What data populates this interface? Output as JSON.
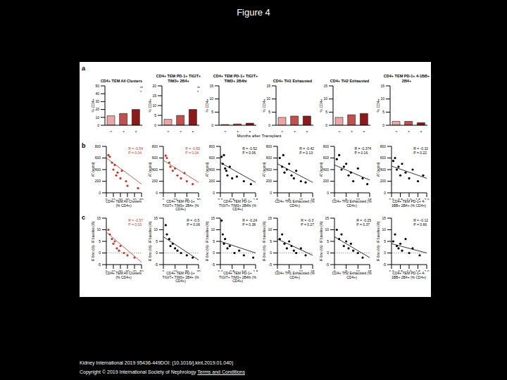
{
  "title": "Figure 4",
  "panel_labels": [
    "a",
    "b",
    "c"
  ],
  "shared_x_label": "Months after Transplant",
  "footer": [
    "Kidney International 2019 95436-449DOI: (10.1016/j.kint.2019.01.040)",
    "Copyright © 2019 International Society of Nephrology",
    "Terms and Conditions"
  ],
  "chart_data": [
    {
      "type": "bar",
      "title": "CD4+ TEM All Clusters",
      "categories": [
        "0",
        "3",
        "6"
      ],
      "values": [
        12,
        15,
        20
      ],
      "colors": [
        "#e8a6a6",
        "#c0504d",
        "#8b1a1a"
      ],
      "y_label": "% CD4+",
      "ylim": [
        0,
        50
      ],
      "yticks": [
        0,
        10,
        20,
        30,
        40,
        50
      ],
      "annotations": [
        "**",
        "*"
      ],
      "annotation_color": "#000000"
    },
    {
      "type": "bar",
      "title": "CD4+ TEM PD-1+ TIGIT+ TIM3+ 2B4+",
      "categories": [
        "0",
        "3",
        "6"
      ],
      "values": [
        3,
        5,
        8
      ],
      "colors": [
        "#e8a6a6",
        "#c0504d",
        "#8b1a1a"
      ],
      "y_label": "% CD4+",
      "ylim": [
        0,
        20
      ],
      "yticks": [
        0,
        5,
        10,
        15,
        20
      ],
      "annotations": [
        "**",
        "*"
      ],
      "annotation_color": "#000000"
    },
    {
      "type": "bar",
      "title": "CD4+ TEM PD-1+ TIGIT+ TIM3+ 2B4hi",
      "categories": [
        "0",
        "3",
        "6"
      ],
      "values": [
        0.3,
        0.5,
        0.8
      ],
      "colors": [
        "#e8a6a6",
        "#c0504d",
        "#8b1a1a"
      ],
      "y_label": "% CD4+",
      "ylim": [
        0,
        15
      ],
      "yticks": [
        0,
        5,
        10,
        15
      ]
    },
    {
      "type": "bar",
      "title": "CD4+ TH1 Exhausted",
      "categories": [
        "0",
        "3",
        "6"
      ],
      "values": [
        3,
        3.5,
        3.5
      ],
      "colors": [
        "#e8a6a6",
        "#c0504d",
        "#8b1a1a"
      ],
      "y_label": "% CD4+",
      "ylim": [
        0,
        15
      ],
      "yticks": [
        0,
        5,
        10,
        15
      ]
    },
    {
      "type": "bar",
      "title": "CD4+ TH2 Exhausted",
      "categories": [
        "0",
        "3",
        "6"
      ],
      "values": [
        3,
        4,
        4.5
      ],
      "colors": [
        "#e8a6a6",
        "#c0504d",
        "#8b1a1a"
      ],
      "y_label": "% CD4+",
      "ylim": [
        0,
        15
      ],
      "yticks": [
        0,
        5,
        10,
        15
      ]
    },
    {
      "type": "bar",
      "title": "CD4+ TEM PD-1+ 4-1BB+ 2B4+",
      "categories": [
        "0",
        "3",
        "6"
      ],
      "values": [
        1.5,
        1.5,
        1
      ],
      "colors": [
        "#e8a6a6",
        "#c0504d",
        "#8b1a1a"
      ],
      "y_label": "% CD4+",
      "ylim": [
        0,
        15
      ],
      "yticks": [
        0,
        5,
        10,
        15
      ]
    },
    {
      "type": "scatter",
      "x_label": "CD4+ TEM All Clusters (% CD4+)",
      "y_label": "AT (ng/ml)",
      "x": [
        3,
        5,
        8,
        10,
        12,
        14,
        16,
        20,
        22,
        28,
        30,
        45
      ],
      "values": [
        650,
        620,
        520,
        400,
        480,
        300,
        350,
        250,
        380,
        200,
        120,
        80
      ],
      "color": "#c0392b",
      "xlim": [
        0,
        50
      ],
      "xticks": [
        0,
        10,
        20,
        30,
        40,
        50
      ],
      "ylim": [
        0,
        800
      ],
      "yticks": [
        0,
        200,
        400,
        600,
        800
      ],
      "annotations": [
        "R = -0.54",
        "P = 0.04"
      ],
      "annotation_color": "#c0392b",
      "trend_line": [
        [
          0,
          600
        ],
        [
          50,
          150
        ]
      ]
    },
    {
      "type": "scatter",
      "x_label": "CD4+ TEM PD-1+ TIGIT+ TIM3+ 2B4+ (% CD4+)",
      "y_label": "AT (ng/ml)",
      "x": [
        2,
        3,
        5,
        6,
        8,
        10,
        12,
        15,
        18,
        20,
        25
      ],
      "values": [
        640,
        600,
        520,
        450,
        380,
        420,
        300,
        250,
        340,
        200,
        150
      ],
      "color": "#c0392b",
      "xlim": [
        0,
        30
      ],
      "xticks": [
        0,
        10,
        20,
        30
      ],
      "ylim": [
        0,
        800
      ],
      "yticks": [
        0,
        200,
        400,
        600,
        800
      ],
      "annotations": [
        "R = -0.55",
        "P = 0.04"
      ],
      "annotation_color": "#c0392b",
      "trend_line": [
        [
          0,
          560
        ],
        [
          30,
          180
        ]
      ]
    },
    {
      "type": "scatter",
      "x_label": "CD4+ TEM PD-1+ TIGIT+ TIM3+ 2B4hi (% CD4+)",
      "y_label": "AT (ng/ml)",
      "x": [
        0.05,
        0.1,
        0.15,
        0.2,
        0.25,
        0.3,
        0.4,
        0.5,
        0.7,
        1.0,
        1.3
      ],
      "values": [
        620,
        500,
        650,
        420,
        380,
        300,
        450,
        250,
        280,
        200,
        150
      ],
      "color": "#000000",
      "xlim": [
        0,
        1.5
      ],
      "xticks": [
        {
          "value": 0,
          "label": "0.0"
        },
        0.5,
        {
          "value": 1,
          "label": "1.0"
        },
        1.5
      ],
      "ylim": [
        0,
        800
      ],
      "yticks": [
        0,
        200,
        400,
        600,
        800
      ],
      "annotations": [
        "R = -0.52",
        "P = 0.06"
      ],
      "annotation_color": "#000000",
      "trend_line": [
        [
          0,
          520
        ],
        [
          1.5,
          180
        ]
      ]
    },
    {
      "type": "scatter",
      "x_label": "CD4+ TH1 Exhausted (% CD4+)",
      "y_label": "AT (ng/ml)",
      "x": [
        1,
        2,
        2.5,
        3,
        4,
        5,
        6,
        7,
        8,
        10,
        12
      ],
      "values": [
        600,
        450,
        650,
        350,
        400,
        500,
        300,
        250,
        380,
        200,
        180
      ],
      "color": "#000000",
      "xlim": [
        0,
        15
      ],
      "xticks": [
        0,
        5,
        10,
        15
      ],
      "ylim": [
        0,
        800
      ],
      "yticks": [
        0,
        200,
        400,
        600,
        800
      ],
      "annotations": [
        "R = -0.42",
        "P = 0.13"
      ],
      "annotation_color": "#000000",
      "trend_line": [
        [
          0,
          500
        ],
        [
          15,
          180
        ]
      ]
    },
    {
      "type": "scatter",
      "x_label": "CD4+ TH2 Exhausted (% CD4+)",
      "y_label": "AT (ng/ml)",
      "x": [
        1,
        2,
        3,
        4,
        5,
        6,
        7,
        8,
        10,
        12,
        14
      ],
      "values": [
        580,
        650,
        400,
        450,
        500,
        300,
        350,
        200,
        420,
        250,
        150
      ],
      "color": "#000000",
      "xlim": [
        0,
        15
      ],
      "xticks": [
        0,
        5,
        10,
        15
      ],
      "ylim": [
        0,
        800
      ],
      "yticks": [
        0,
        200,
        400,
        600,
        800
      ],
      "annotations": [
        "R = -0.374",
        "P = 0.16"
      ],
      "annotation_color": "#000000",
      "trend_line": [
        [
          0,
          480
        ],
        [
          15,
          220
        ]
      ]
    },
    {
      "type": "scatter",
      "x_label": "CD4+ TEM PD-1+ 4-1BB+ 2B4+ (% CD4+)",
      "y_label": "AT (ng/ml)",
      "x": [
        0.1,
        0.2,
        0.3,
        0.4,
        0.5,
        0.6,
        0.8,
        1.0,
        1.2,
        1.5,
        1.8
      ],
      "values": [
        550,
        600,
        400,
        450,
        300,
        500,
        350,
        250,
        400,
        200,
        300
      ],
      "color": "#000000",
      "xlim": [
        0,
        2
      ],
      "xticks": [
        {
          "value": 0,
          "label": "0.0"
        },
        0.5,
        {
          "value": 1,
          "label": "1.0"
        },
        1.5,
        {
          "value": 2,
          "label": "2.0"
        }
      ],
      "ylim": [
        0,
        800
      ],
      "yticks": [
        0,
        200,
        400,
        600,
        800
      ],
      "annotations": [
        "R = -0.32",
        "P = 0.22"
      ],
      "annotation_color": "#000000",
      "trend_line": [
        [
          0,
          460
        ],
        [
          2,
          250
        ]
      ]
    },
    {
      "type": "scatter",
      "x_label": "CD4+ TEM All Clusters (% CD4+)",
      "y_label": "IF 6mo (%) - IF baseline (%)",
      "x": [
        3,
        5,
        8,
        10,
        12,
        15,
        18,
        20,
        25,
        30,
        40
      ],
      "values": [
        10,
        8,
        6,
        4,
        5,
        2,
        1,
        3,
        0,
        -1,
        -2
      ],
      "color": "#c0392b",
      "xlim": [
        0,
        50
      ],
      "xticks": [
        0,
        10,
        20,
        30,
        40,
        50
      ],
      "ylim": [
        -5,
        15
      ],
      "yticks": [
        -5,
        0,
        5,
        10,
        15
      ],
      "annotations": [
        "R = -0.57",
        "P = 0.03"
      ],
      "annotation_color": "#c0392b",
      "trend_line": [
        [
          0,
          9
        ],
        [
          50,
          -4
        ]
      ],
      "reference_line": 0
    },
    {
      "type": "scatter",
      "x_label": "CD4+ TEM PD-1+ TIGIT+ TIM3+ 2B4+ (% CD4+)",
      "y_label": "IF 6mo (%) - IF baseline (%)",
      "x": [
        2,
        3,
        5,
        6,
        8,
        10,
        12,
        15,
        20,
        25
      ],
      "values": [
        12,
        8,
        6,
        3,
        4,
        2,
        1,
        0,
        -1,
        -2
      ],
      "color": "#000000",
      "xlim": [
        0,
        30
      ],
      "xticks": [
        0,
        10,
        20,
        30
      ],
      "ylim": [
        -5,
        15
      ],
      "yticks": [
        -5,
        0,
        5,
        10,
        15
      ],
      "annotations": [
        "R = -0.5",
        "P = 0.06"
      ],
      "annotation_color": "#000000",
      "trend_line": [
        [
          0,
          7
        ],
        [
          30,
          -3
        ]
      ],
      "reference_line": 0
    },
    {
      "type": "scatter",
      "x_label": "CD4+ TEM PD-1+ TIGIT+ TIM3+ 2B4hi (% CD4+)",
      "y_label": "IF 6mo (%) - IF baseline (%)",
      "x": [
        0.05,
        0.1,
        0.15,
        0.2,
        0.3,
        0.4,
        0.6,
        0.8,
        1.0,
        1.4
      ],
      "values": [
        14,
        8,
        4,
        6,
        2,
        3,
        0,
        1,
        -1,
        -2
      ],
      "color": "#000000",
      "xlim": [
        0,
        1.5
      ],
      "xticks": [
        {
          "value": 0,
          "label": "0.0"
        },
        0.5,
        {
          "value": 1,
          "label": "1.0"
        },
        1.5
      ],
      "ylim": [
        -5,
        15
      ],
      "yticks": [
        -5,
        0,
        5,
        10,
        15
      ],
      "annotations": [
        "R = -0.24",
        "P = 0.38"
      ],
      "annotation_color": "#000000",
      "trend_line": [
        [
          0,
          5
        ],
        [
          1.5,
          0
        ]
      ],
      "reference_line": 0
    },
    {
      "type": "scatter",
      "x_label": "CD4+ TH1 Exhausted (% CD4+)",
      "y_label": "IF 6mo (%) - IF baseline (%)",
      "x": [
        1,
        2,
        3,
        4,
        5,
        6,
        7,
        8,
        10,
        12
      ],
      "values": [
        6,
        8,
        4,
        2,
        5,
        3,
        1,
        0,
        2,
        -1
      ],
      "color": "#000000",
      "xlim": [
        0,
        15
      ],
      "xticks": [
        0,
        5,
        10,
        15
      ],
      "ylim": [
        -5,
        15
      ],
      "yticks": [
        -5,
        0,
        5,
        10,
        15
      ],
      "annotations": [
        "R = -0.3",
        "P = 0.27"
      ],
      "annotation_color": "#000000",
      "trend_line": [
        [
          0,
          6
        ],
        [
          15,
          -1
        ]
      ],
      "reference_line": 0
    },
    {
      "type": "scatter",
      "x_label": "CD4+ TH2 Exhausted (% CD4+)",
      "y_label": "IF 6mo (%) - IF baseline (%)",
      "x": [
        1,
        2,
        3,
        4,
        5,
        6,
        7,
        8,
        10,
        12
      ],
      "values": [
        10,
        6,
        8,
        3,
        5,
        2,
        4,
        1,
        0,
        -2
      ],
      "color": "#000000",
      "xlim": [
        0,
        15
      ],
      "xticks": [
        0,
        5,
        10,
        15
      ],
      "ylim": [
        -5,
        15
      ],
      "yticks": [
        -5,
        0,
        5,
        10,
        15
      ],
      "annotations": [
        "R = -0.25",
        "P = 0.37"
      ],
      "annotation_color": "#000000",
      "trend_line": [
        [
          0,
          7
        ],
        [
          15,
          -2
        ]
      ],
      "reference_line": 0
    },
    {
      "type": "scatter",
      "x_label": "CD4+ TEM PD-1+ 4-1BB+ 2B4+ (% CD4+)",
      "y_label": "IF 6mo (%) - IF baseline (%)",
      "x": [
        0.1,
        0.2,
        0.3,
        0.4,
        0.5,
        0.6,
        0.8,
        1.0,
        1.2,
        1.6
      ],
      "values": [
        5,
        8,
        3,
        2,
        4,
        1,
        6,
        0,
        2,
        -1
      ],
      "color": "#000000",
      "xlim": [
        0,
        2
      ],
      "xticks": [
        {
          "value": 0,
          "label": "0.0"
        },
        0.5,
        {
          "value": 1,
          "label": "1.0"
        },
        1.5,
        {
          "value": 2,
          "label": "2.0"
        }
      ],
      "ylim": [
        -5,
        15
      ],
      "yticks": [
        -5,
        0,
        5,
        10,
        15
      ],
      "annotations": [
        "R = -0.12",
        "P = 0.66"
      ],
      "annotation_color": "#000000",
      "trend_line": [
        [
          0,
          4
        ],
        [
          2,
          0
        ]
      ],
      "reference_line": 0
    }
  ]
}
